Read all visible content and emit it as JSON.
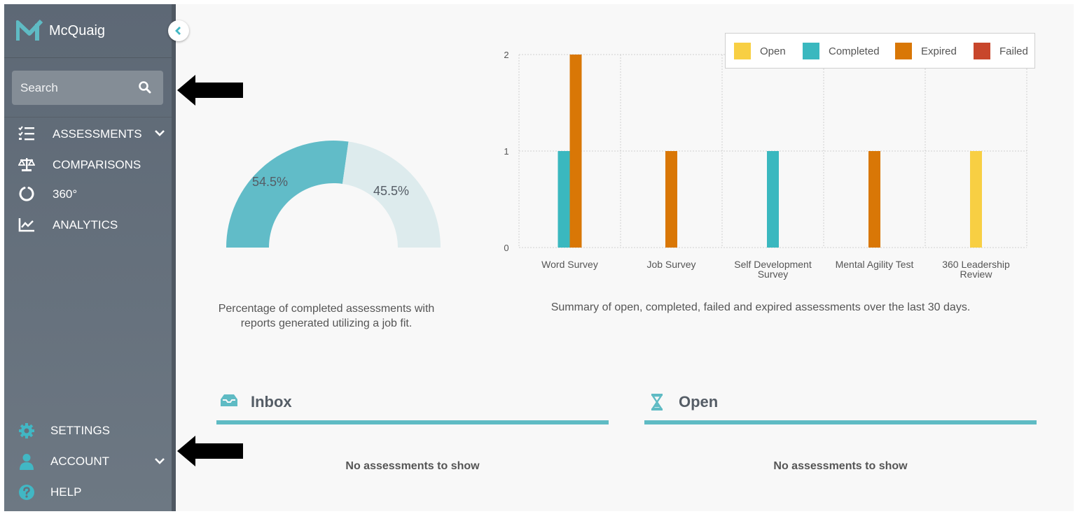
{
  "sidebar": {
    "brand_name": "McQuaig",
    "search_placeholder": "Search",
    "items": [
      {
        "label": "ASSESSMENTS"
      },
      {
        "label": "COMPARISONS"
      },
      {
        "label": "360°"
      },
      {
        "label": "ANALYTICS"
      }
    ],
    "bottom_items": [
      {
        "label": "SETTINGS"
      },
      {
        "label": "ACCOUNT"
      },
      {
        "label": "HELP"
      }
    ]
  },
  "gauge": {
    "completed_pct": 54.5,
    "other_pct": 45.5,
    "completed_label": "54.5%",
    "other_label": "45.5%",
    "caption_line1": "Percentage of completed assessments with",
    "caption_line2": "reports generated utilizing a job fit."
  },
  "chart_data": {
    "type": "bar",
    "title": "",
    "categories": [
      "Word Survey",
      "Job Survey",
      "Self Development Survey",
      "Mental Agility Test",
      "360 Leadership Review"
    ],
    "category_lines": [
      [
        "Word Survey"
      ],
      [
        "Job Survey"
      ],
      [
        "Self Development",
        "Survey"
      ],
      [
        "Mental Agility Test"
      ],
      [
        "360 Leadership",
        "Review"
      ]
    ],
    "series": [
      {
        "name": "Open",
        "color": "#f8cf43",
        "values": [
          0,
          0,
          0,
          0,
          1
        ]
      },
      {
        "name": "Completed",
        "color": "#3ab8bf",
        "values": [
          1,
          0,
          1,
          0,
          0
        ]
      },
      {
        "name": "Expired",
        "color": "#d97706",
        "values": [
          2,
          1,
          0,
          1,
          0
        ]
      },
      {
        "name": "Failed",
        "color": "#c8462b",
        "values": [
          0,
          0,
          0,
          0,
          0
        ]
      }
    ],
    "yticks": [
      "0",
      "1",
      "2"
    ],
    "ylim": [
      0,
      2
    ],
    "xlabel": "",
    "ylabel": "",
    "legend": "top-right",
    "caption": "Summary of open, completed, failed and expired assessments over the last 30 days."
  },
  "panels": {
    "inbox": {
      "title": "Inbox",
      "empty_text": "No assessments to show"
    },
    "open": {
      "title": "Open",
      "empty_text": "No assessments to show"
    }
  },
  "colors": {
    "accent": "#5fbbc4",
    "sidebar": "#66717c"
  }
}
